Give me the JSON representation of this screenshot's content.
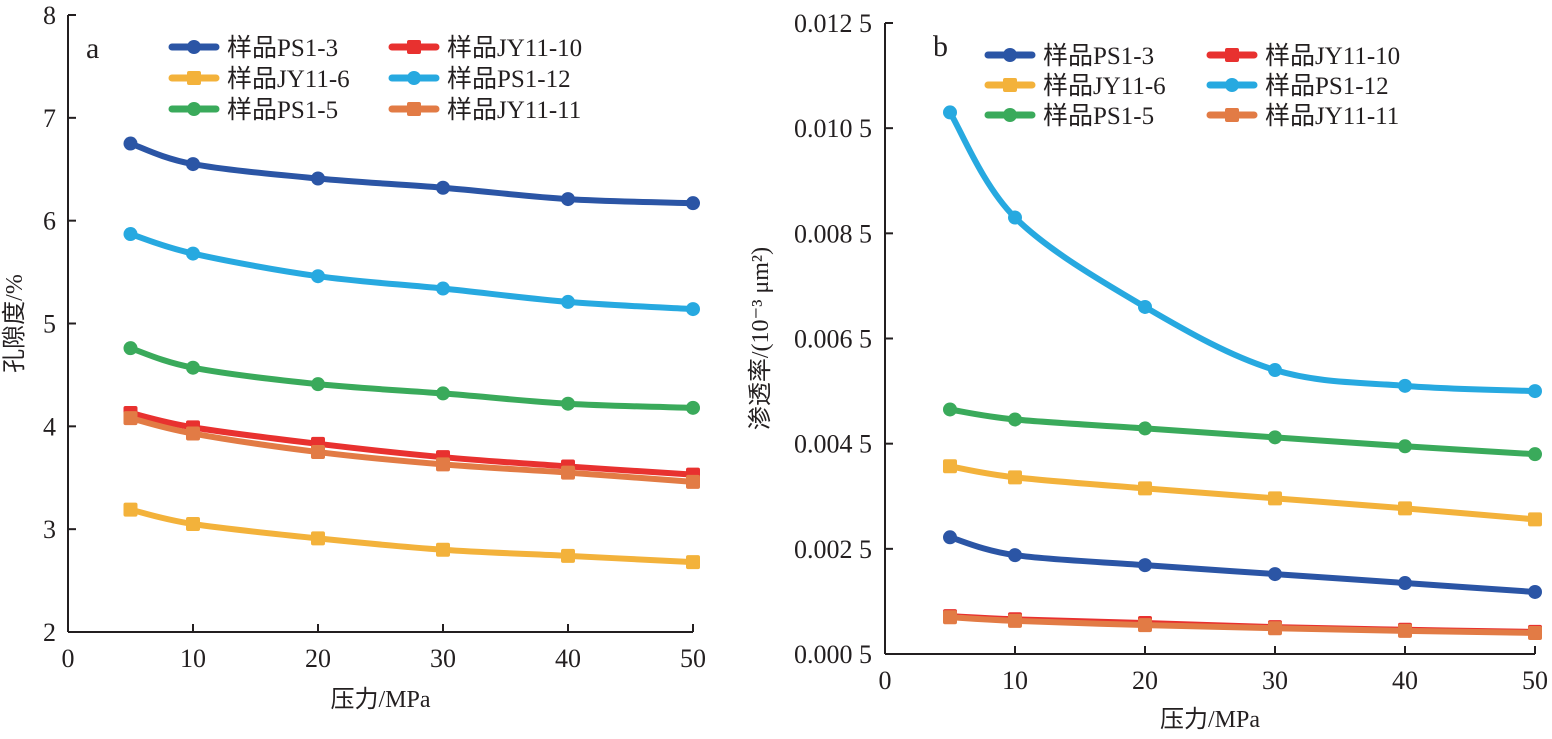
{
  "chart_data": [
    {
      "type": "line",
      "panel_label": "a",
      "title": "",
      "xlabel": "压力/MPa",
      "ylabel": "孔隙度/%",
      "xlim": [
        0,
        50
      ],
      "ylim": [
        2,
        8
      ],
      "xticks": [
        "0",
        "10",
        "20",
        "30",
        "40",
        "50"
      ],
      "xtick_values": [
        0,
        10,
        20,
        30,
        40,
        50
      ],
      "yticks": [
        "2",
        "3",
        "4",
        "5",
        "6",
        "7",
        "8"
      ],
      "ytick_values": [
        2,
        3,
        4,
        5,
        6,
        7,
        8
      ],
      "grid": false,
      "legend_position": "top",
      "x": [
        5,
        10,
        20,
        30,
        40,
        50
      ],
      "series": [
        {
          "name": "样品PS1-3",
          "color": "#2b55a5",
          "marker": "circle",
          "values": [
            6.75,
            6.55,
            6.41,
            6.32,
            6.21,
            6.17
          ]
        },
        {
          "name": "样品JY11-10",
          "color": "#e8312f",
          "marker": "square",
          "values": [
            4.13,
            3.99,
            3.83,
            3.7,
            3.61,
            3.53
          ]
        },
        {
          "name": "样品JY11-6",
          "color": "#f3b23b",
          "marker": "square",
          "values": [
            3.19,
            3.05,
            2.91,
            2.8,
            2.74,
            2.68
          ]
        },
        {
          "name": "样品PS1-12",
          "color": "#27a9e0",
          "marker": "circle",
          "values": [
            5.87,
            5.68,
            5.46,
            5.34,
            5.21,
            5.14
          ]
        },
        {
          "name": "样品PS1-5",
          "color": "#3aaa5b",
          "marker": "circle",
          "values": [
            4.76,
            4.57,
            4.41,
            4.32,
            4.22,
            4.18
          ]
        },
        {
          "name": "样品JY11-11",
          "color": "#e27b45",
          "marker": "square",
          "values": [
            4.08,
            3.93,
            3.75,
            3.63,
            3.55,
            3.46
          ]
        }
      ]
    },
    {
      "type": "line",
      "panel_label": "b",
      "title": "",
      "xlabel": "压力/MPa",
      "ylabel": "渗透率/(10⁻³ μm²)",
      "xlim": [
        0,
        50
      ],
      "ylim": [
        0.0005,
        0.0125
      ],
      "xticks": [
        "0",
        "10",
        "20",
        "30",
        "40",
        "50"
      ],
      "xtick_values": [
        0,
        10,
        20,
        30,
        40,
        50
      ],
      "yticks": [
        "0.000 5",
        "0.002 5",
        "0.004 5",
        "0.006 5",
        "0.008 5",
        "0.010 5",
        "0.012 5"
      ],
      "ytick_values": [
        0.0005,
        0.0025,
        0.0045,
        0.0065,
        0.0085,
        0.0105,
        0.0125
      ],
      "grid": false,
      "legend_position": "top",
      "x": [
        5,
        10,
        20,
        30,
        40,
        50
      ],
      "series": [
        {
          "name": "样品PS1-3",
          "color": "#2b55a5",
          "marker": "circle",
          "values": [
            0.00272,
            0.00238,
            0.00219,
            0.00202,
            0.00185,
            0.00168
          ]
        },
        {
          "name": "样品JY11-10",
          "color": "#e8312f",
          "marker": "square",
          "values": [
            0.00122,
            0.00116,
            0.00109,
            0.00101,
            0.00096,
            0.00092
          ]
        },
        {
          "name": "样品JY11-6",
          "color": "#f3b23b",
          "marker": "square",
          "values": [
            0.00407,
            0.00386,
            0.00365,
            0.00346,
            0.00327,
            0.00306
          ]
        },
        {
          "name": "样品PS1-12",
          "color": "#27a9e0",
          "marker": "circle",
          "values": [
            0.0108,
            0.0088,
            0.0071,
            0.0059,
            0.0056,
            0.0055
          ]
        },
        {
          "name": "样品PS1-5",
          "color": "#3aaa5b",
          "marker": "circle",
          "values": [
            0.00515,
            0.00496,
            0.00479,
            0.00462,
            0.00445,
            0.0043
          ]
        },
        {
          "name": "样品JY11-11",
          "color": "#e27b45",
          "marker": "square",
          "values": [
            0.0012,
            0.00113,
            0.00105,
            0.00099,
            0.00094,
            0.0009
          ]
        }
      ]
    }
  ]
}
